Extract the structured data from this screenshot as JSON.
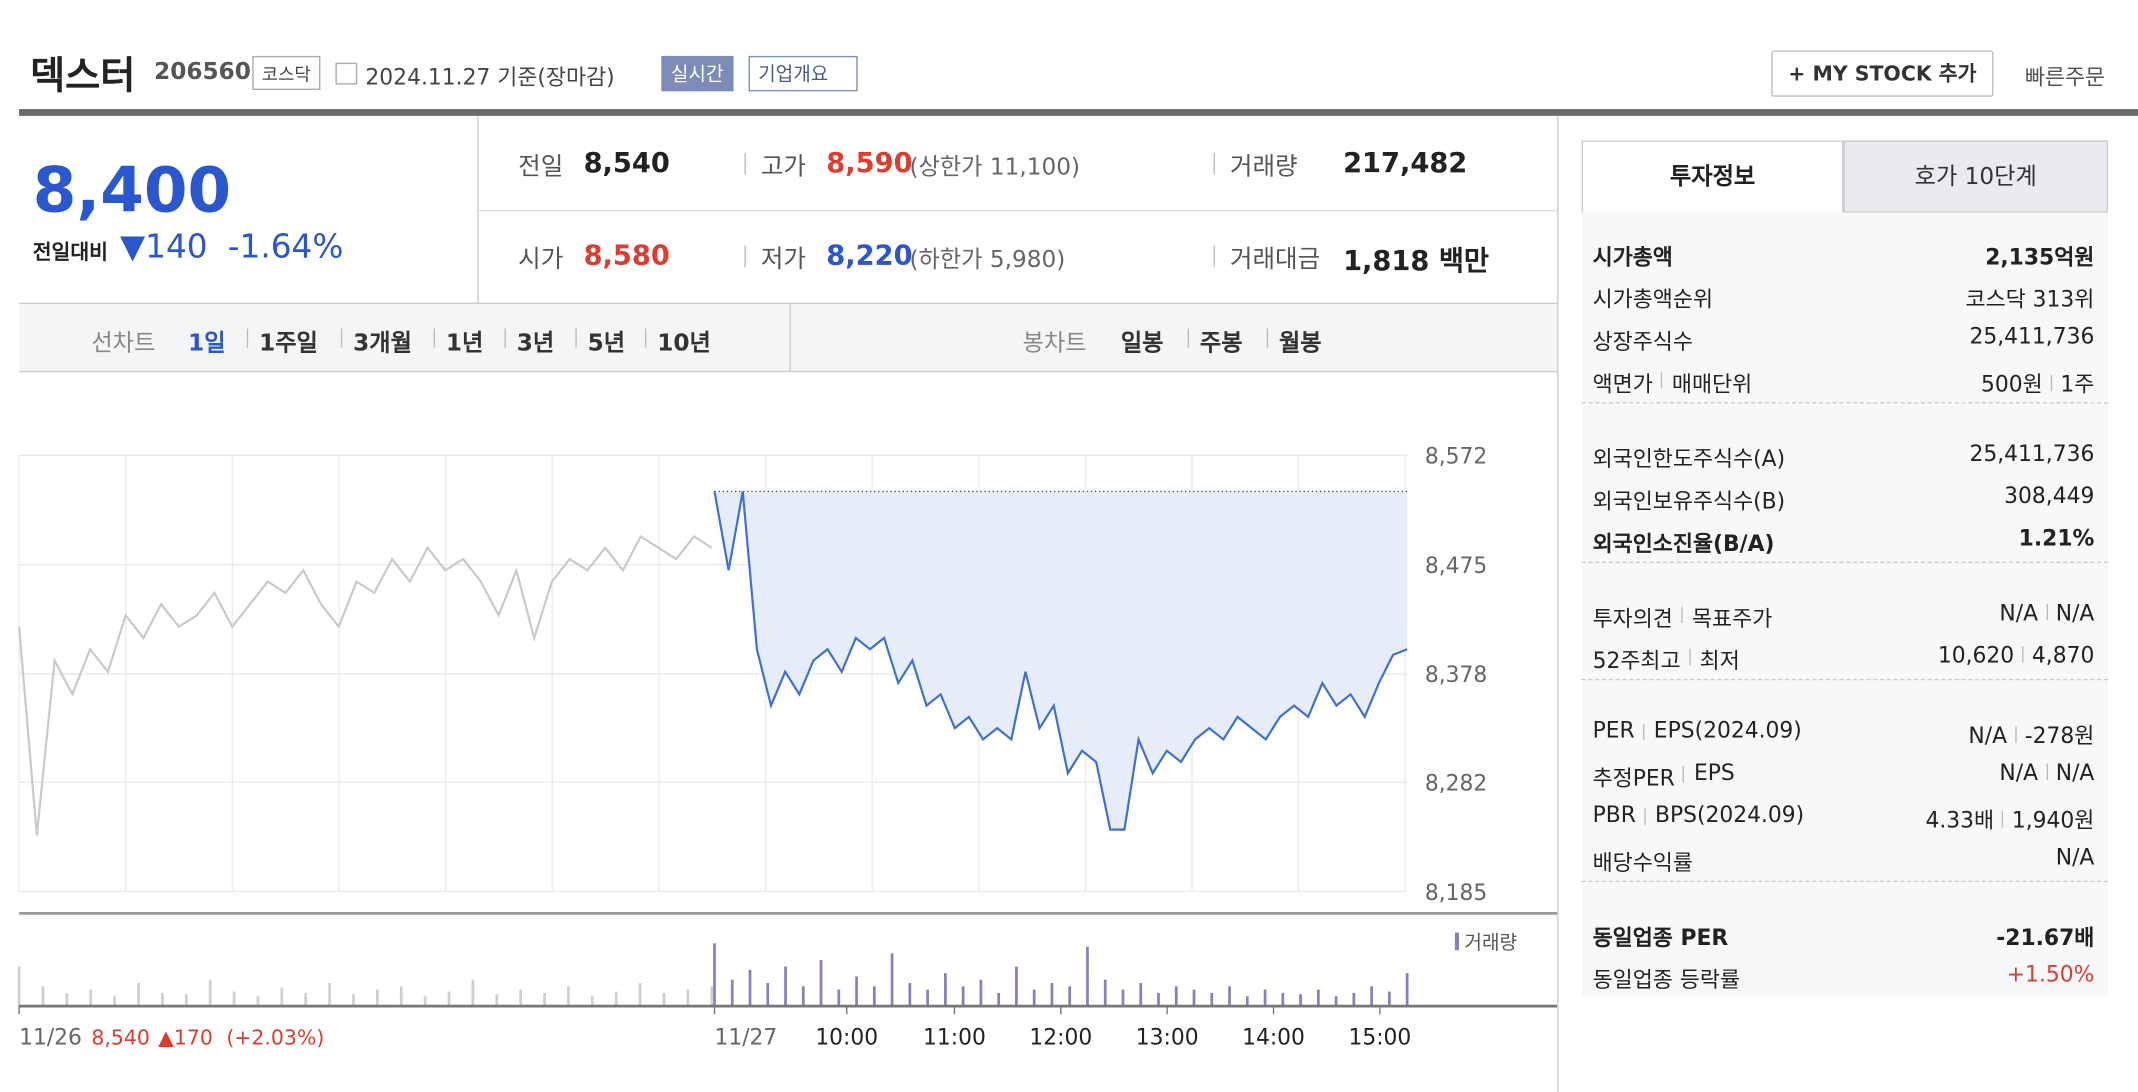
{
  "header": {
    "name": "덱스터",
    "code": "206560",
    "market": "코스닥",
    "date": "2024.11.27 기준(장마감)",
    "realtime": "실시간",
    "company": "기업개요",
    "mystock": "+ MY STOCK 추가",
    "quick_order": "빠른주문"
  },
  "quote": {
    "price": "8,400",
    "change_label": "전일대비",
    "change": "▼140",
    "change_rate": "-1.64%",
    "rows": [
      [
        {
          "label": "전일",
          "value": "8,540"
        },
        {
          "label": "고가",
          "value": "8,590",
          "extra": "(상한가 11,100)"
        },
        {
          "label": "거래량",
          "value": "217,482"
        }
      ],
      [
        {
          "label": "시가",
          "value": "8,580"
        },
        {
          "label": "저가",
          "value": "8,220",
          "extra": "(하한가 5,980)"
        },
        {
          "label": "거래대금",
          "value": "1,818 백만"
        }
      ]
    ]
  },
  "tabs": {
    "line_chart": "선차트",
    "line_periods": [
      "1일",
      "1주일",
      "3개월",
      "1년",
      "3년",
      "5년",
      "10년"
    ],
    "candle_chart": "봉차트",
    "candle_periods": [
      "일봉",
      "주봉",
      "월봉"
    ]
  },
  "chart": {
    "type": "line",
    "ylim": [
      8185,
      8572
    ],
    "yticks": [
      {
        "value": 8572,
        "label": "8,572"
      },
      {
        "value": 8475,
        "label": "8,475"
      },
      {
        "value": 8378,
        "label": "8,378"
      },
      {
        "value": 8282,
        "label": "8,282"
      },
      {
        "value": 8185,
        "label": "8,185"
      }
    ],
    "reference": 8540,
    "series": [
      {
        "color": "#c9c9c9",
        "values": [
          8420,
          8235,
          8390,
          8360,
          8400,
          8380,
          8430,
          8410,
          8440,
          8420,
          8430,
          8450,
          8420,
          8440,
          8460,
          8450,
          8470,
          8440,
          8420,
          8460,
          8450,
          8480,
          8460,
          8490,
          8470,
          8480,
          8460,
          8430,
          8470,
          8410,
          8460,
          8480,
          8470,
          8490,
          8470,
          8500,
          8490,
          8480,
          8500,
          8490
        ]
      },
      {
        "color": "#3d6fd6",
        "values": [
          8540,
          8470,
          8540,
          8400,
          8350,
          8380,
          8360,
          8390,
          8400,
          8380,
          8410,
          8400,
          8410,
          8370,
          8390,
          8350,
          8360,
          8330,
          8340,
          8320,
          8330,
          8320,
          8380,
          8330,
          8350,
          8290,
          8310,
          8300,
          8240,
          8240,
          8320,
          8290,
          8310,
          8300,
          8320,
          8330,
          8320,
          8340,
          8330,
          8320,
          8340,
          8350,
          8340,
          8370,
          8350,
          8360,
          8340,
          8370,
          8395,
          8400
        ]
      }
    ],
    "volume": {
      "label": "거래량",
      "series": [
        {
          "color": "#cfcfcf",
          "values": [
            60,
            30,
            20,
            25,
            15,
            35,
            20,
            18,
            40,
            22,
            15,
            28,
            20,
            35,
            18,
            25,
            30,
            15,
            22,
            40,
            18,
            25,
            20,
            30,
            15,
            22,
            35,
            20,
            25,
            30
          ]
        },
        {
          "color": "#8e7cc3",
          "values": [
            95,
            40,
            55,
            35,
            60,
            30,
            70,
            25,
            45,
            30,
            80,
            35,
            25,
            50,
            30,
            40,
            20,
            60,
            25,
            35,
            30,
            90,
            40,
            25,
            35,
            20,
            30,
            25,
            20,
            30,
            15,
            25,
            20,
            18,
            25,
            15,
            20,
            30,
            22,
            50
          ]
        }
      ]
    },
    "x_labels": [
      "11/26",
      "11/27",
      "10:00",
      "11:00",
      "12:00",
      "13:00",
      "14:00",
      "15:00"
    ],
    "prev_summary": {
      "close": "8,540",
      "change": "▲170",
      "rate": "(+2.03%)"
    }
  },
  "invest": {
    "tabs": [
      "투자정보",
      "호가 10단계"
    ],
    "groups": [
      [
        {
          "labels": [
            "시가총액"
          ],
          "values": [
            "2,135억원"
          ]
        },
        {
          "labels": [
            "시가총액순위"
          ],
          "values": [
            "코스닥 313위"
          ]
        },
        {
          "labels": [
            "상장주식수"
          ],
          "values": [
            "25,411,736"
          ]
        },
        {
          "labels": [
            "액면가",
            "매매단위"
          ],
          "values": [
            "500원",
            "1주"
          ]
        }
      ],
      [
        {
          "labels": [
            "외국인한도주식수(A)"
          ],
          "values": [
            "25,411,736"
          ]
        },
        {
          "labels": [
            "외국인보유주식수(B)"
          ],
          "values": [
            "308,449"
          ]
        },
        {
          "labels": [
            "외국인소진율(B/A)"
          ],
          "values": [
            "1.21%"
          ]
        }
      ],
      [
        {
          "labels": [
            "투자의견",
            "목표주가"
          ],
          "values": [
            "N/A",
            "N/A"
          ]
        },
        {
          "labels": [
            "52주최고",
            "최저"
          ],
          "values": [
            "10,620",
            "4,870"
          ]
        }
      ],
      [
        {
          "labels": [
            "PER",
            "EPS(2024.09)"
          ],
          "values": [
            "N/A",
            "-278원"
          ]
        },
        {
          "labels": [
            "추정PER",
            "EPS"
          ],
          "values": [
            "N/A",
            "N/A"
          ]
        },
        {
          "labels": [
            "PBR",
            "BPS(2024.09)"
          ],
          "values": [
            "4.33배",
            "1,940원"
          ]
        },
        {
          "labels": [
            "배당수익률"
          ],
          "values": [
            "N/A"
          ]
        }
      ],
      [
        {
          "labels": [
            "동일업종 PER"
          ],
          "values": [
            "-21.67배"
          ]
        },
        {
          "labels": [
            "동일업종 등락률"
          ],
          "values": [
            "+1.50%"
          ]
        }
      ]
    ]
  }
}
